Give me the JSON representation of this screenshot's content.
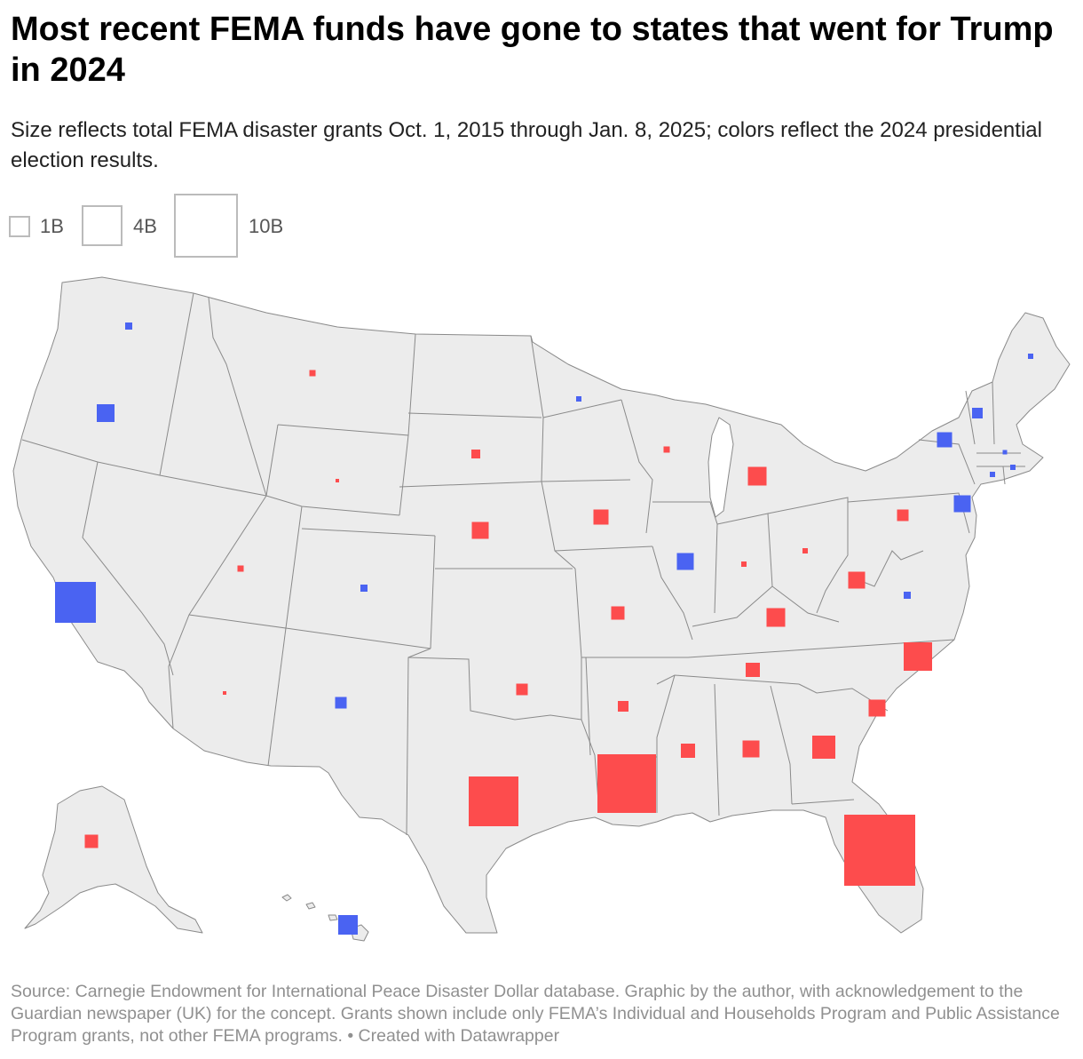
{
  "header": {
    "title": "Most recent FEMA funds have gone to states that went for Trump in 2024",
    "subtitle": "Size reflects total FEMA disaster grants Oct. 1, 2015 through Jan. 8, 2025; colors reflect the 2024 presidential election results."
  },
  "legend": {
    "items": [
      {
        "label": "1B"
      },
      {
        "label": "4B"
      },
      {
        "label": "10B"
      }
    ]
  },
  "colors": {
    "republican": "#fd4c4d",
    "democrat": "#4a63f2",
    "land": "#ececec",
    "border": "#8a8a8a",
    "legend_border": "#bbbbbb"
  },
  "map_data": {
    "type": "symbol-map",
    "region": "United States",
    "symbol": "square",
    "size_encodes": "total FEMA disaster grants",
    "color_encodes": "2024 presidential election result",
    "states": [
      {
        "id": "WA",
        "party": "democrat"
      },
      {
        "id": "OR",
        "party": "democrat"
      },
      {
        "id": "CA",
        "party": "democrat"
      },
      {
        "id": "MT",
        "party": "republican"
      },
      {
        "id": "WY",
        "party": "republican"
      },
      {
        "id": "UT",
        "party": "republican"
      },
      {
        "id": "CO",
        "party": "democrat"
      },
      {
        "id": "AZ",
        "party": "republican"
      },
      {
        "id": "NM",
        "party": "democrat"
      },
      {
        "id": "SD",
        "party": "republican"
      },
      {
        "id": "NE",
        "party": "republican"
      },
      {
        "id": "OK",
        "party": "republican"
      },
      {
        "id": "TX",
        "party": "republican"
      },
      {
        "id": "MN",
        "party": "democrat"
      },
      {
        "id": "IA",
        "party": "republican"
      },
      {
        "id": "MO",
        "party": "republican"
      },
      {
        "id": "AR",
        "party": "republican"
      },
      {
        "id": "LA",
        "party": "republican"
      },
      {
        "id": "WI",
        "party": "republican"
      },
      {
        "id": "IL",
        "party": "democrat"
      },
      {
        "id": "MI",
        "party": "republican"
      },
      {
        "id": "IN",
        "party": "republican"
      },
      {
        "id": "OH",
        "party": "republican"
      },
      {
        "id": "KY",
        "party": "republican"
      },
      {
        "id": "TN",
        "party": "republican"
      },
      {
        "id": "MS",
        "party": "republican"
      },
      {
        "id": "AL",
        "party": "republican"
      },
      {
        "id": "GA",
        "party": "republican"
      },
      {
        "id": "FL",
        "party": "republican"
      },
      {
        "id": "SC",
        "party": "republican"
      },
      {
        "id": "NC",
        "party": "republican"
      },
      {
        "id": "VA",
        "party": "democrat"
      },
      {
        "id": "WV",
        "party": "republican"
      },
      {
        "id": "PA",
        "party": "republican"
      },
      {
        "id": "NY",
        "party": "democrat"
      },
      {
        "id": "NJ",
        "party": "democrat"
      },
      {
        "id": "VT",
        "party": "democrat"
      },
      {
        "id": "ME",
        "party": "democrat"
      },
      {
        "id": "MA",
        "party": "democrat"
      },
      {
        "id": "RI",
        "party": "democrat"
      },
      {
        "id": "CT",
        "party": "democrat"
      },
      {
        "id": "AK",
        "party": "republican"
      },
      {
        "id": "HI",
        "party": "democrat"
      }
    ]
  },
  "footer": {
    "source": "Source: Carnegie Endowment for International Peace Disaster Dollar database. Graphic by the author, with acknowledgement to the Guardian newspaper (UK) for the concept. Grants shown include only FEMA’s Individual and Households Program and Public Assistance Program grants, not other FEMA programs. • Created with Datawrapper"
  }
}
